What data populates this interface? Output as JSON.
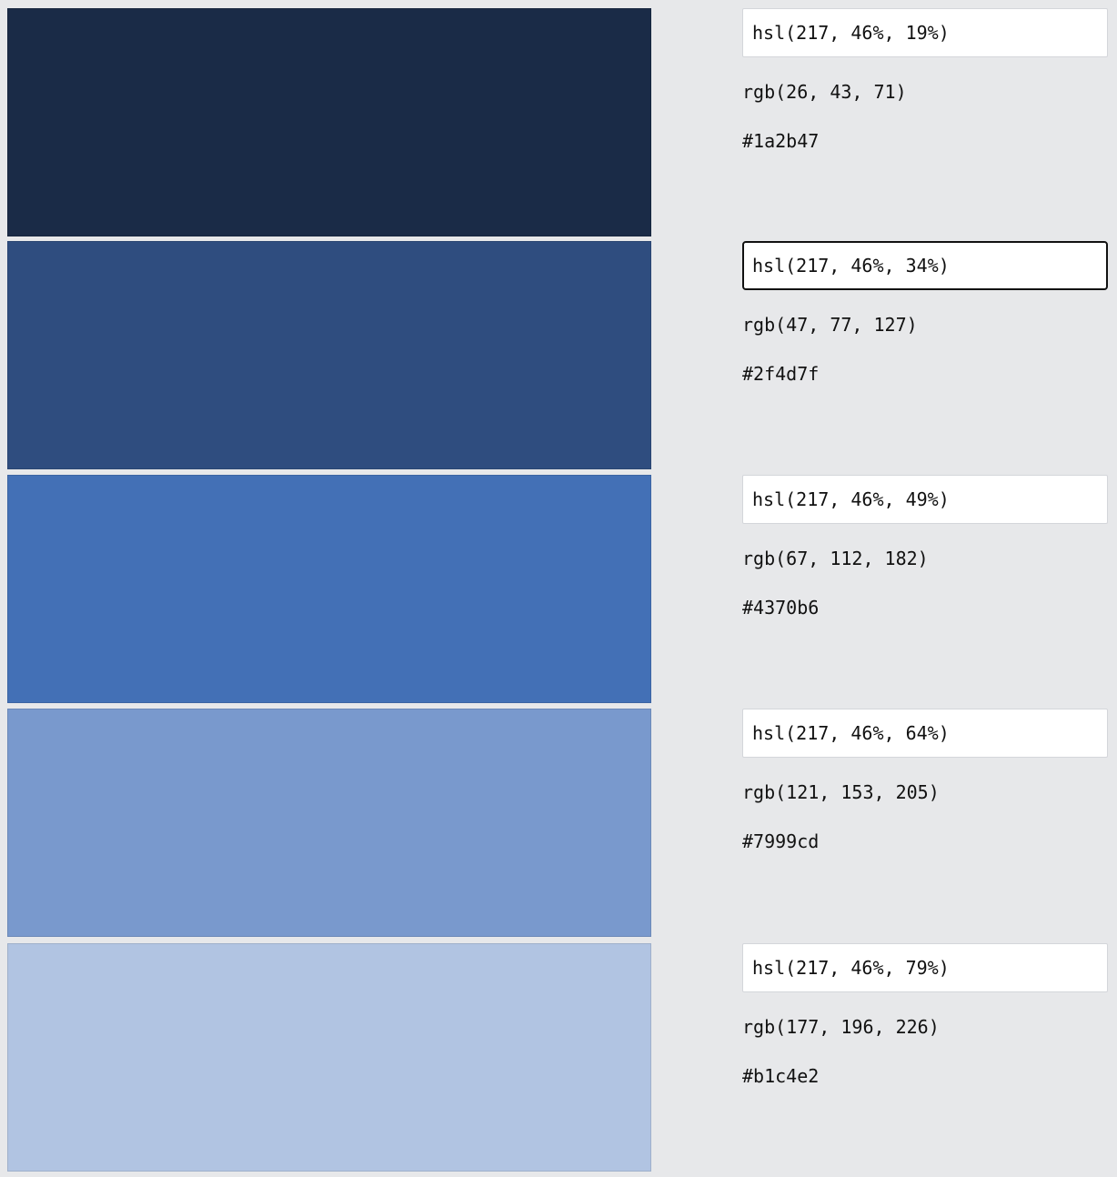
{
  "swatches": [
    {
      "color": "#1a2b47",
      "hsl": "hsl(217, 46%, 19%)",
      "rgb": "rgb(26, 43, 71)",
      "hex": "#1a2b47"
    },
    {
      "color": "#2f4d7f",
      "hsl": "hsl(217, 46%, 34%)",
      "rgb": "rgb(47, 77, 127)",
      "hex": "#2f4d7f"
    },
    {
      "color": "#4370b6",
      "hsl": "hsl(217, 46%, 49%)",
      "rgb": "rgb(67, 112, 182)",
      "hex": "#4370b6"
    },
    {
      "color": "#7999cd",
      "hsl": "hsl(217, 46%, 64%)",
      "rgb": "rgb(121, 153, 205)",
      "hex": "#7999cd"
    },
    {
      "color": "#b1c4e2",
      "hsl": "hsl(217, 46%, 79%)",
      "rgb": "rgb(177, 196, 226)",
      "hex": "#b1c4e2"
    }
  ],
  "focused_index": 1
}
